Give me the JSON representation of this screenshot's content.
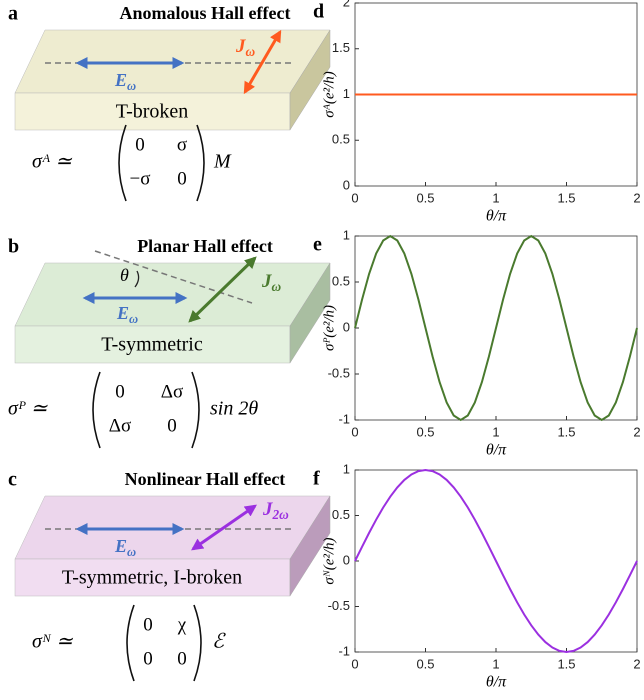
{
  "panels": [
    {
      "label": "a",
      "title": "Anomalous Hall effect",
      "e_field": {
        "main": "E",
        "sub": "ω"
      },
      "current": {
        "main": "J",
        "sub": "ω"
      },
      "slab_text": "T-broken",
      "formula": {
        "lhs": "σᴬ ≃",
        "matrix": [
          [
            "0",
            "σ"
          ],
          [
            "−σ",
            "0"
          ]
        ],
        "rhs": "M"
      }
    },
    {
      "label": "b",
      "title": "Planar Hall effect",
      "angle": "θ",
      "e_field": {
        "main": "E",
        "sub": "ω"
      },
      "current": {
        "main": "J",
        "sub": "ω"
      },
      "slab_text": "T-symmetric",
      "formula": {
        "lhs": "σᴾ ≃",
        "matrix": [
          [
            "0",
            "Δσ"
          ],
          [
            "Δσ",
            "0"
          ]
        ],
        "rhs": "sin 2θ"
      }
    },
    {
      "label": "c",
      "title": "Nonlinear Hall effect",
      "e_field": {
        "main": "E",
        "sub": "ω"
      },
      "current": {
        "main": "J",
        "sub": "2ω"
      },
      "slab_text": "T-symmetric, I-broken",
      "formula": {
        "lhs": "σᴺ ≃",
        "matrix": [
          [
            "0",
            "χ"
          ],
          [
            "0",
            "0"
          ]
        ],
        "rhs": "ℰ"
      }
    }
  ],
  "chart_data": [
    {
      "type": "line",
      "label": "d",
      "xlabel": "θ/π",
      "ylabel": "σᴬ(e²/h)",
      "xlim": [
        0,
        2
      ],
      "ylim": [
        0,
        2
      ],
      "xticks": [
        0,
        0.5,
        1,
        1.5,
        2
      ],
      "yticks": [
        0,
        0.5,
        1,
        1.5,
        2
      ],
      "x": [
        0,
        2
      ],
      "series": [
        {
          "color": "#ff5a1f",
          "values": [
            1,
            1
          ]
        }
      ]
    },
    {
      "type": "line",
      "label": "e",
      "xlabel": "θ/π",
      "ylabel": "σᴾ(e²/h)",
      "xlim": [
        0,
        2
      ],
      "ylim": [
        -1,
        1
      ],
      "xticks": [
        0,
        0.5,
        1,
        1.5,
        2
      ],
      "yticks": [
        -1,
        -0.5,
        0,
        0.5,
        1
      ],
      "x": [
        0,
        0.05,
        0.1,
        0.15,
        0.2,
        0.25,
        0.3,
        0.35,
        0.4,
        0.45,
        0.5,
        0.55,
        0.6,
        0.65,
        0.7,
        0.75,
        0.8,
        0.85,
        0.9,
        0.95,
        1,
        1.05,
        1.1,
        1.15,
        1.2,
        1.25,
        1.3,
        1.35,
        1.4,
        1.45,
        1.5,
        1.55,
        1.6,
        1.65,
        1.7,
        1.75,
        1.8,
        1.85,
        1.9,
        1.95,
        2
      ],
      "series": [
        {
          "color": "#4a7a2e",
          "values": [
            0,
            0.309,
            0.588,
            0.809,
            0.951,
            1,
            0.951,
            0.809,
            0.588,
            0.309,
            0,
            -0.309,
            -0.588,
            -0.809,
            -0.951,
            -1,
            -0.951,
            -0.809,
            -0.588,
            -0.309,
            0,
            0.309,
            0.588,
            0.809,
            0.951,
            1,
            0.951,
            0.809,
            0.588,
            0.309,
            0,
            -0.309,
            -0.588,
            -0.809,
            -0.951,
            -1,
            -0.951,
            -0.809,
            -0.588,
            -0.309,
            0
          ]
        }
      ]
    },
    {
      "type": "line",
      "label": "f",
      "xlabel": "θ/π",
      "ylabel": "σᴺ(e²/h)",
      "xlim": [
        0,
        2
      ],
      "ylim": [
        -1,
        1
      ],
      "xticks": [
        0,
        0.5,
        1,
        1.5,
        2
      ],
      "yticks": [
        -1,
        -0.5,
        0,
        0.5,
        1
      ],
      "x": [
        0,
        0.05,
        0.1,
        0.15,
        0.2,
        0.25,
        0.3,
        0.35,
        0.4,
        0.45,
        0.5,
        0.55,
        0.6,
        0.65,
        0.7,
        0.75,
        0.8,
        0.85,
        0.9,
        0.95,
        1,
        1.05,
        1.1,
        1.15,
        1.2,
        1.25,
        1.3,
        1.35,
        1.4,
        1.45,
        1.5,
        1.55,
        1.6,
        1.65,
        1.7,
        1.75,
        1.8,
        1.85,
        1.9,
        1.95,
        2
      ],
      "series": [
        {
          "color": "#9b30e0",
          "values": [
            0,
            0.156,
            0.309,
            0.454,
            0.588,
            0.707,
            0.809,
            0.891,
            0.951,
            0.988,
            1,
            0.988,
            0.951,
            0.891,
            0.809,
            0.707,
            0.588,
            0.454,
            0.309,
            0.156,
            0,
            -0.156,
            -0.309,
            -0.454,
            -0.588,
            -0.707,
            -0.809,
            -0.891,
            -0.951,
            -0.988,
            -1,
            -0.988,
            -0.951,
            -0.891,
            -0.809,
            -0.707,
            -0.588,
            -0.454,
            -0.309,
            -0.156,
            0
          ]
        }
      ]
    }
  ]
}
